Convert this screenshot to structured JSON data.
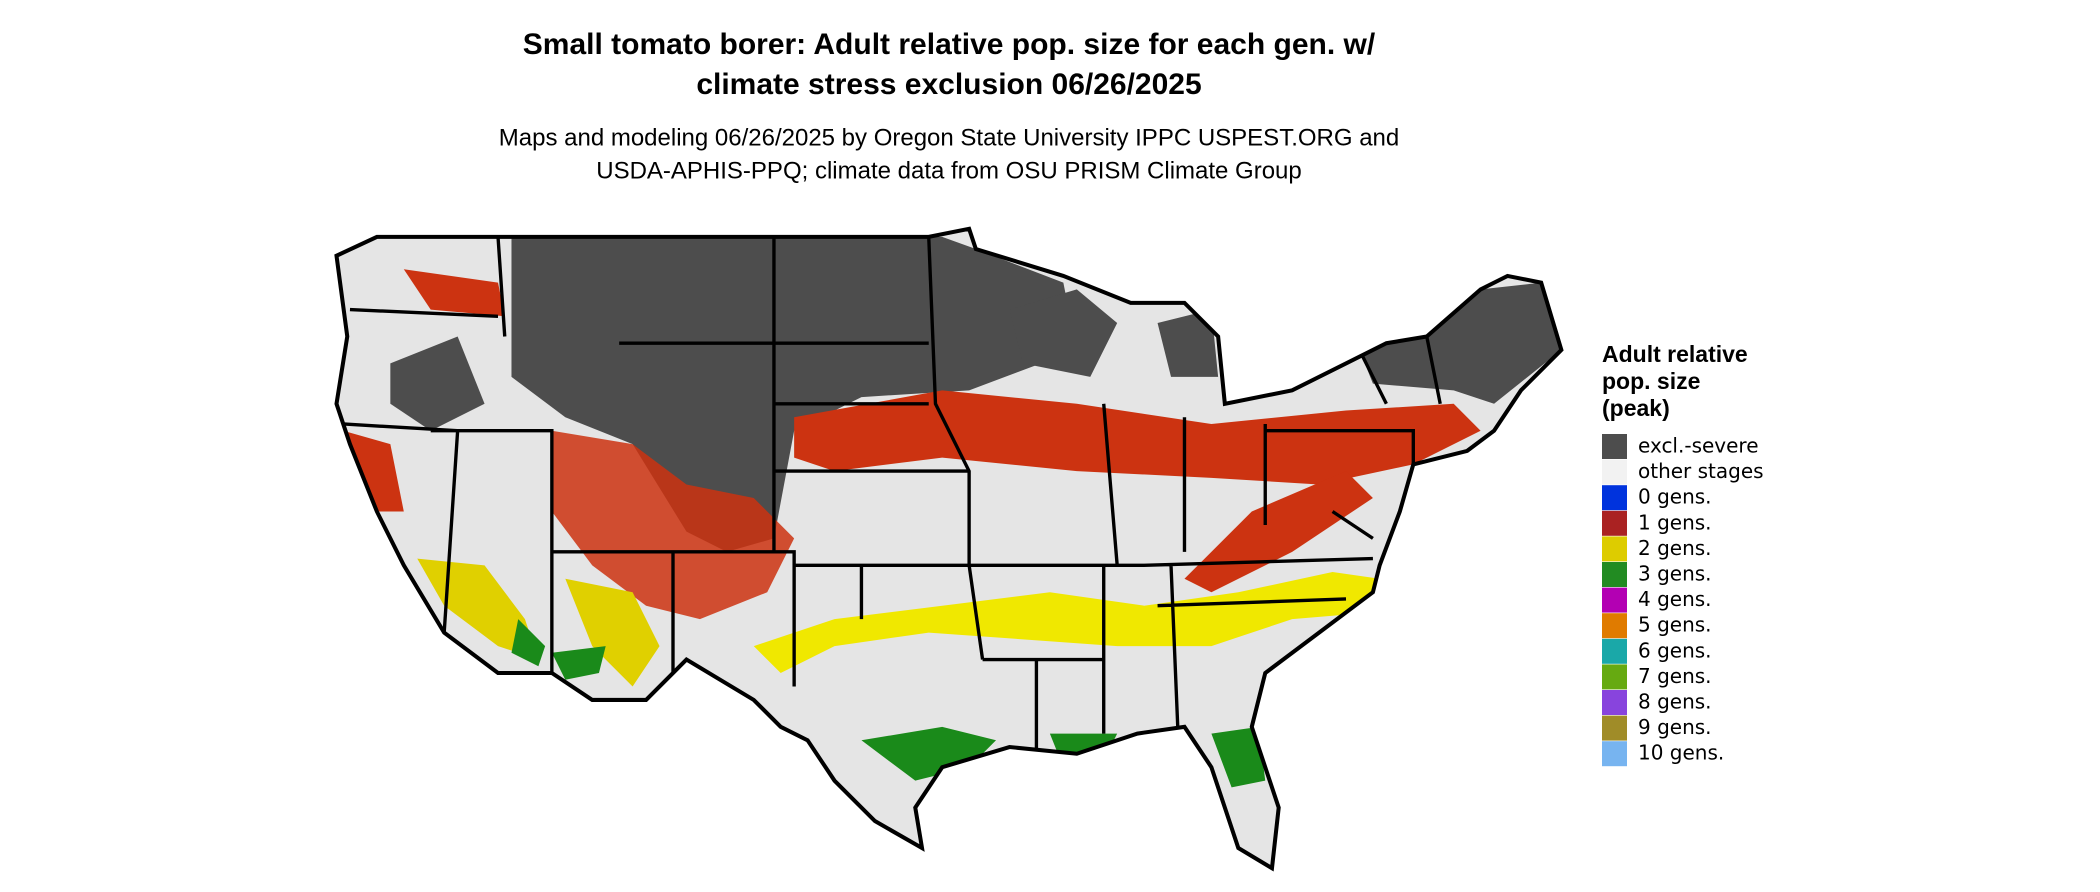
{
  "title_lines": [
    "Small tomato borer: Adult relative pop. size for each gen. w/",
    "climate stress exclusion 06/26/2025"
  ],
  "subtitle_lines": [
    "Maps and modeling 06/26/2025 by Oregon State University IPPC USPEST.ORG and",
    "USDA-APHIS-PPQ; climate data from OSU PRISM Climate Group"
  ],
  "legend": {
    "title_lines": [
      "Adult relative",
      "pop. size",
      "(peak)"
    ],
    "items": [
      {
        "label": "excl.-severe",
        "color": "#4d4d4d"
      },
      {
        "label": "other stages",
        "color": "#f2f2f2"
      },
      {
        "label": "0 gens.",
        "color": "#0033dd"
      },
      {
        "label": "1 gens.",
        "color": "#aa2222"
      },
      {
        "label": "2 gens.",
        "color": "#ddcc00"
      },
      {
        "label": "3 gens.",
        "color": "#228b22"
      },
      {
        "label": "4 gens.",
        "color": "#b300b3"
      },
      {
        "label": "5 gens.",
        "color": "#e07b00"
      },
      {
        "label": "6 gens.",
        "color": "#1aa8a8"
      },
      {
        "label": "7 gens.",
        "color": "#66aa11"
      },
      {
        "label": "8 gens.",
        "color": "#8844dd"
      },
      {
        "label": "9 gens.",
        "color": "#a08c28"
      },
      {
        "label": "10 gens.",
        "color": "#77b4f0"
      }
    ]
  }
}
